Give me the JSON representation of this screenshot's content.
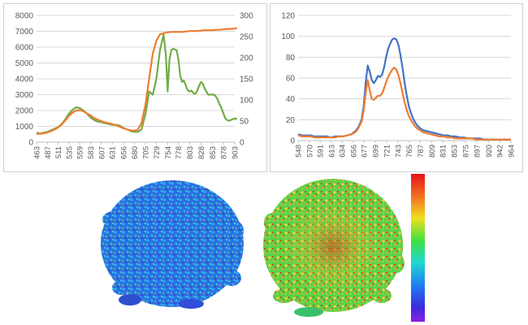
{
  "chart_data": [
    {
      "type": "line",
      "secondary_axis": true,
      "x_tick_labels": [
        "463",
        "487",
        "511",
        "535",
        "559",
        "583",
        "607",
        "631",
        "656",
        "680",
        "705",
        "729",
        "754",
        "778",
        "803",
        "828",
        "853",
        "878",
        "903"
      ],
      "ylim": [
        0,
        8000
      ],
      "y_ticks": [
        "0",
        "1000",
        "2000",
        "3000",
        "4000",
        "5000",
        "6000",
        "7000",
        "8000"
      ],
      "y2lim": [
        0,
        300
      ],
      "y2_ticks": [
        "0",
        "50",
        "100",
        "150",
        "200",
        "250",
        "300"
      ],
      "grid": true,
      "series": [
        {
          "color": "#70ad47",
          "axis": "left",
          "x": [
            463,
            471,
            479,
            487,
            495,
            503,
            511,
            519,
            527,
            535,
            543,
            551,
            559,
            567,
            575,
            583,
            591,
            599,
            607,
            615,
            623,
            631,
            639,
            647,
            656,
            664,
            672,
            680,
            688,
            696,
            705,
            713,
            721,
            729,
            737,
            745,
            750,
            754,
            758,
            762,
            766,
            770,
            774,
            778,
            782,
            786,
            790,
            794,
            798,
            803,
            807,
            811,
            815,
            819,
            823,
            828,
            832,
            836,
            840,
            844,
            848,
            853,
            857,
            861,
            865,
            869,
            873,
            878,
            882,
            886,
            890,
            894,
            898,
            903,
            908
          ],
          "values": [
            600,
            550,
            600,
            650,
            750,
            850,
            950,
            1150,
            1450,
            1800,
            2050,
            2200,
            2150,
            2000,
            1800,
            1550,
            1400,
            1300,
            1250,
            1200,
            1150,
            1100,
            1100,
            1050,
            900,
            800,
            700,
            650,
            650,
            800,
            1800,
            3200,
            3000,
            4000,
            5800,
            6800,
            5500,
            3200,
            5200,
            5800,
            5900,
            5850,
            5800,
            5200,
            4200,
            3800,
            3900,
            3600,
            3300,
            3200,
            3250,
            3100,
            3050,
            3200,
            3500,
            3800,
            3700,
            3400,
            3200,
            3000,
            3000,
            3000,
            3000,
            2900,
            2700,
            2400,
            2200,
            1800,
            1500,
            1400,
            1350,
            1400,
            1450,
            1500,
            1450
          ]
        },
        {
          "color": "#ed7d31",
          "axis": "right",
          "x": [
            463,
            471,
            479,
            487,
            495,
            503,
            511,
            519,
            527,
            535,
            543,
            551,
            559,
            567,
            575,
            583,
            591,
            599,
            607,
            615,
            623,
            631,
            639,
            647,
            656,
            664,
            672,
            680,
            688,
            696,
            705,
            713,
            721,
            729,
            737,
            745,
            754,
            762,
            770,
            778,
            786,
            794,
            803,
            811,
            819,
            828,
            836,
            844,
            853,
            861,
            869,
            878,
            886,
            894,
            903,
            908
          ],
          "values": [
            20,
            20,
            21,
            23,
            26,
            30,
            35,
            42,
            52,
            62,
            70,
            75,
            76,
            73,
            68,
            63,
            57,
            53,
            50,
            47,
            45,
            43,
            40,
            37,
            33,
            30,
            28,
            27,
            30,
            45,
            90,
            150,
            210,
            240,
            255,
            258,
            260,
            261,
            261,
            261,
            261,
            262,
            263,
            263,
            263,
            264,
            265,
            265,
            265,
            266,
            266,
            267,
            268,
            268,
            269,
            270
          ]
        }
      ]
    },
    {
      "type": "line",
      "x_tick_labels": [
        "548",
        "570",
        "591",
        "613",
        "634",
        "656",
        "677",
        "699",
        "721",
        "743",
        "765",
        "787",
        "809",
        "831",
        "853",
        "875",
        "897",
        "920",
        "942",
        "964"
      ],
      "ylim": [
        0,
        120
      ],
      "y_ticks": [
        "0",
        "20",
        "40",
        "60",
        "80",
        "100",
        "120"
      ],
      "grid": true,
      "series": [
        {
          "color": "#4472c4",
          "x": [
            548,
            556,
            564,
            572,
            580,
            588,
            596,
            604,
            612,
            620,
            628,
            636,
            644,
            652,
            660,
            666,
            672,
            676,
            680,
            684,
            688,
            692,
            696,
            700,
            704,
            708,
            712,
            716,
            720,
            724,
            728,
            732,
            736,
            740,
            744,
            748,
            752,
            756,
            760,
            764,
            768,
            772,
            776,
            780,
            786,
            792,
            800,
            808,
            816,
            824,
            832,
            840,
            848,
            856,
            864,
            872,
            880,
            888,
            896,
            904,
            912,
            920,
            928,
            936,
            944,
            952,
            960,
            964
          ],
          "values": [
            6,
            5,
            5,
            5,
            4,
            4,
            4,
            4,
            3,
            4,
            4,
            4,
            5,
            6,
            9,
            13,
            20,
            32,
            55,
            72,
            66,
            58,
            55,
            58,
            62,
            61,
            63,
            70,
            80,
            88,
            93,
            97,
            98,
            97,
            92,
            82,
            70,
            56,
            44,
            34,
            27,
            22,
            18,
            15,
            12,
            10,
            9,
            8,
            7,
            6,
            5,
            5,
            4,
            4,
            3,
            3,
            2,
            2,
            2,
            2,
            1,
            1,
            1,
            1,
            1,
            1,
            1,
            1
          ]
        },
        {
          "color": "#ed7d31",
          "x": [
            548,
            556,
            564,
            572,
            580,
            588,
            596,
            604,
            612,
            620,
            628,
            636,
            644,
            652,
            660,
            666,
            672,
            676,
            680,
            684,
            688,
            692,
            696,
            700,
            704,
            708,
            712,
            716,
            720,
            724,
            728,
            732,
            736,
            740,
            744,
            748,
            752,
            756,
            760,
            764,
            768,
            772,
            776,
            780,
            786,
            792,
            800,
            808,
            816,
            824,
            832,
            840,
            848,
            856,
            864,
            872,
            880,
            888,
            896,
            904,
            912,
            920,
            928,
            936,
            944,
            952,
            960,
            964
          ],
          "values": [
            5,
            4,
            4,
            4,
            3,
            3,
            3,
            3,
            3,
            3,
            4,
            4,
            5,
            6,
            8,
            12,
            18,
            28,
            45,
            58,
            48,
            40,
            39,
            41,
            43,
            43,
            45,
            50,
            56,
            61,
            65,
            68,
            70,
            68,
            63,
            55,
            46,
            37,
            30,
            24,
            20,
            17,
            14,
            12,
            10,
            8,
            7,
            6,
            5,
            4,
            4,
            3,
            3,
            2,
            2,
            2,
            2,
            2,
            1,
            1,
            1,
            1,
            1,
            1,
            1,
            1,
            1,
            1
          ]
        }
      ]
    }
  ],
  "images": {
    "left_heatmap": "mostly blue/cyan spheroid heatmap",
    "right_heatmap": "green/yellow/red spheroid heatmap",
    "colorbar": "vertical rainbow colorbar, red top to violet bottom"
  }
}
